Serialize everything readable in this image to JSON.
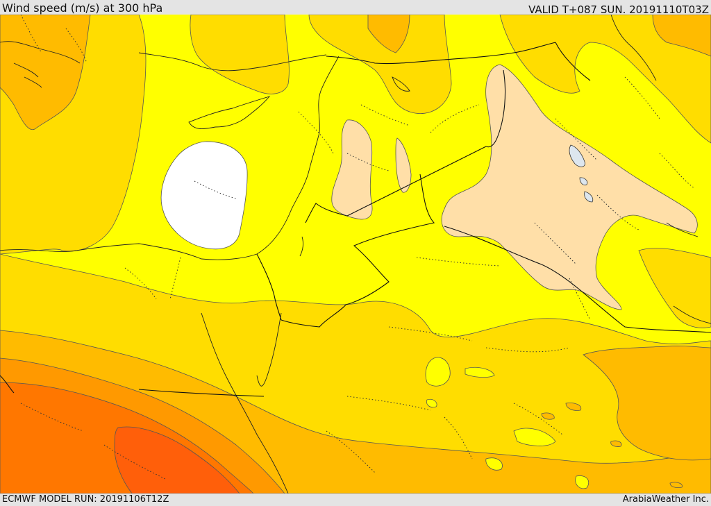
{
  "header": {
    "title": "Wind speed (m/s) at 300 hPa",
    "valid_time": "VALID T+087 SUN. 20191110T03Z"
  },
  "footer": {
    "model_run": "ECMWF MODEL RUN: 20191106T12Z",
    "credit": "ArabiaWeather Inc."
  },
  "colors": {
    "lowest_band": "#ffffff",
    "band_peach": "#ffdfa8",
    "band_yellow": "#ffff00",
    "band_gold": "#ffdd00",
    "band_amber": "#ffbb00",
    "band_orange": "#ff9900",
    "band_deep_orange": "#ff7700",
    "band_red_orange": "#ff5f0a"
  }
}
